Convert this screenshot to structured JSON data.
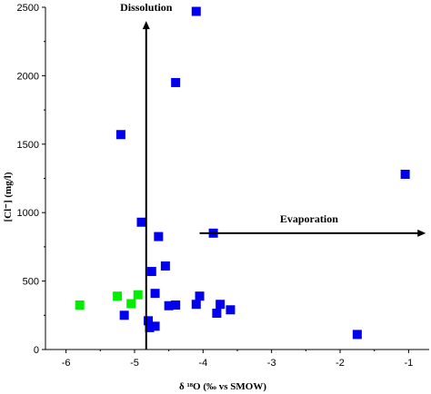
{
  "chart_data": {
    "type": "scatter",
    "xlabel": "δ ¹⁸O (‰ vs SMOW)",
    "ylabel": "[Cl⁻] (mg/l)",
    "xlim": [
      -6.3,
      -0.7
    ],
    "ylim": [
      0,
      2500
    ],
    "xticks": [
      -6,
      -5,
      -4,
      -3,
      -2,
      -1
    ],
    "yticks": [
      0,
      500,
      1000,
      1500,
      2000,
      2500
    ],
    "grid": false,
    "series": [
      {
        "color": "#0000ee",
        "marker": "square",
        "points": [
          {
            "x": -4.1,
            "y": 2470
          },
          {
            "x": -4.4,
            "y": 1950
          },
          {
            "x": -5.2,
            "y": 1570
          },
          {
            "x": -1.05,
            "y": 1280
          },
          {
            "x": -4.9,
            "y": 930
          },
          {
            "x": -3.85,
            "y": 850
          },
          {
            "x": -4.65,
            "y": 825
          },
          {
            "x": -4.55,
            "y": 610
          },
          {
            "x": -4.75,
            "y": 570
          },
          {
            "x": -4.7,
            "y": 410
          },
          {
            "x": -4.05,
            "y": 390
          },
          {
            "x": -4.1,
            "y": 330
          },
          {
            "x": -4.4,
            "y": 325
          },
          {
            "x": -4.5,
            "y": 320
          },
          {
            "x": -3.75,
            "y": 330
          },
          {
            "x": -3.6,
            "y": 290
          },
          {
            "x": -3.8,
            "y": 265
          },
          {
            "x": -5.15,
            "y": 250
          },
          {
            "x": -4.8,
            "y": 210
          },
          {
            "x": -4.7,
            "y": 170
          },
          {
            "x": -4.78,
            "y": 160
          },
          {
            "x": -1.75,
            "y": 110
          }
        ]
      },
      {
        "color": "#00ee00",
        "marker": "square",
        "points": [
          {
            "x": -5.8,
            "y": 325
          },
          {
            "x": -5.25,
            "y": 390
          },
          {
            "x": -5.05,
            "y": 335
          },
          {
            "x": -4.95,
            "y": 400
          }
        ]
      }
    ],
    "annotations": [
      {
        "text": "Dissolution",
        "type": "arrow-up",
        "x": -4.83,
        "y_from": 0,
        "y_to": 2400
      },
      {
        "text": "Evaporation",
        "type": "arrow-right",
        "y": 850,
        "x_from": -4.05,
        "x_to": -0.75
      }
    ]
  }
}
